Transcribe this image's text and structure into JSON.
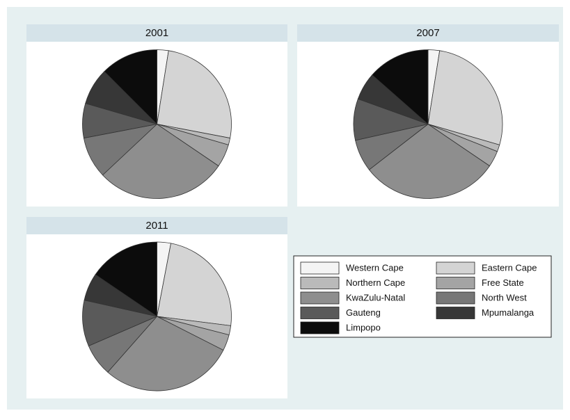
{
  "chart_data": [
    {
      "type": "pie",
      "title": "2001",
      "categories": [
        "Western Cape",
        "Eastern Cape",
        "Northern Cape",
        "Free State",
        "KwaZulu-Natal",
        "North West",
        "Gauteng",
        "Mpumalanga",
        "Limpopo"
      ],
      "values": [
        2.5,
        25.5,
        1.5,
        5,
        28.5,
        9,
        7.5,
        8,
        12.5
      ],
      "colors": [
        "#f4f4f4",
        "#d4d4d4",
        "#bababa",
        "#a4a4a4",
        "#8e8e8e",
        "#777777",
        "#5a5a5a",
        "#373737",
        "#0c0c0c"
      ]
    },
    {
      "type": "pie",
      "title": "2007",
      "categories": [
        "Western Cape",
        "Eastern Cape",
        "Northern Cape",
        "Free State",
        "KwaZulu-Natal",
        "North West",
        "Gauteng",
        "Mpumalanga",
        "Limpopo"
      ],
      "values": [
        2.5,
        27,
        1.5,
        3.5,
        30,
        7,
        9,
        6,
        13.5
      ],
      "colors": [
        "#f4f4f4",
        "#d4d4d4",
        "#bababa",
        "#a4a4a4",
        "#8e8e8e",
        "#777777",
        "#5a5a5a",
        "#373737",
        "#0c0c0c"
      ]
    },
    {
      "type": "pie",
      "title": "2011",
      "categories": [
        "Western Cape",
        "Eastern Cape",
        "Northern Cape",
        "Free State",
        "KwaZulu-Natal",
        "North West",
        "Gauteng",
        "Mpumalanga",
        "Limpopo"
      ],
      "values": [
        3,
        24,
        2,
        3.5,
        29,
        7,
        10,
        6,
        15.5
      ],
      "colors": [
        "#f4f4f4",
        "#d4d4d4",
        "#bababa",
        "#a4a4a4",
        "#8e8e8e",
        "#777777",
        "#5a5a5a",
        "#373737",
        "#0c0c0c"
      ]
    }
  ]
}
